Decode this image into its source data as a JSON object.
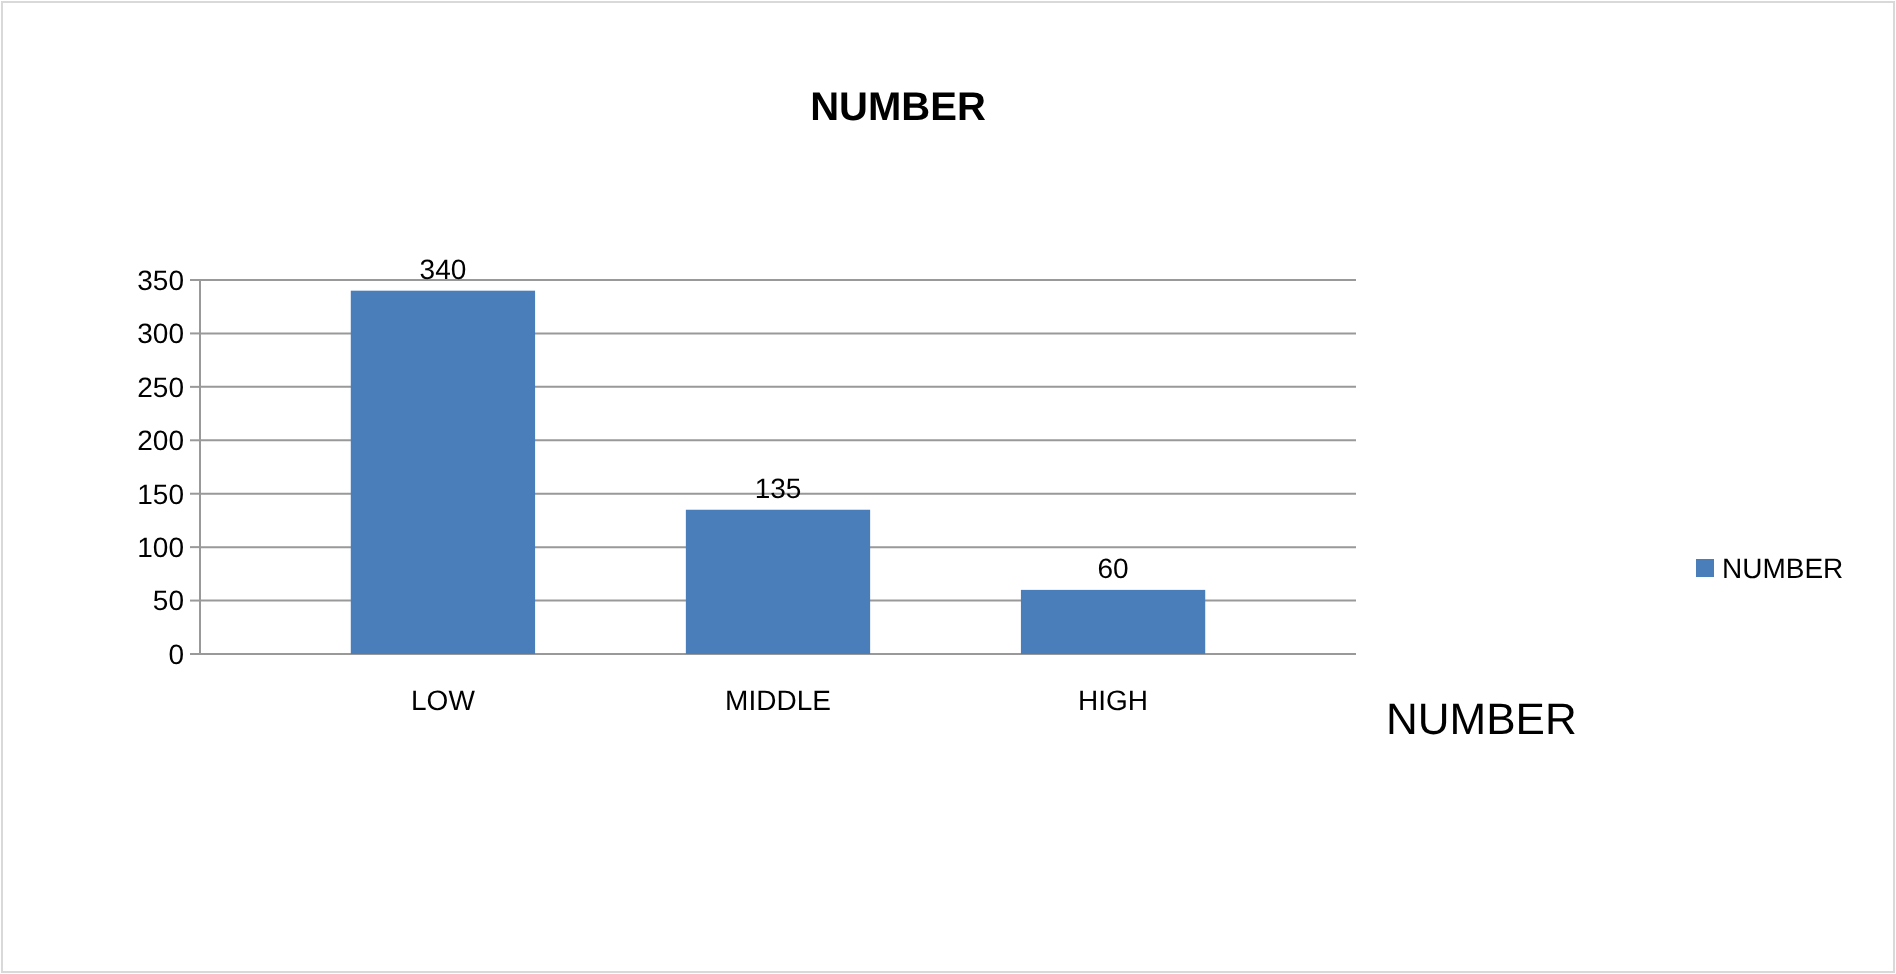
{
  "chart_data": {
    "type": "bar",
    "title": "NUMBER",
    "categories": [
      "LOW",
      "MIDDLE",
      "HIGH"
    ],
    "series": [
      {
        "name": "NUMBER",
        "color": "#4a7ebb",
        "values": [
          340,
          135,
          60
        ]
      }
    ],
    "ylim": [
      0,
      350
    ],
    "yticks": [
      0,
      50,
      100,
      150,
      200,
      250,
      300,
      350
    ],
    "grid": "y",
    "legend": "right",
    "data_labels": true,
    "annotations": [
      "NUMBER"
    ]
  }
}
